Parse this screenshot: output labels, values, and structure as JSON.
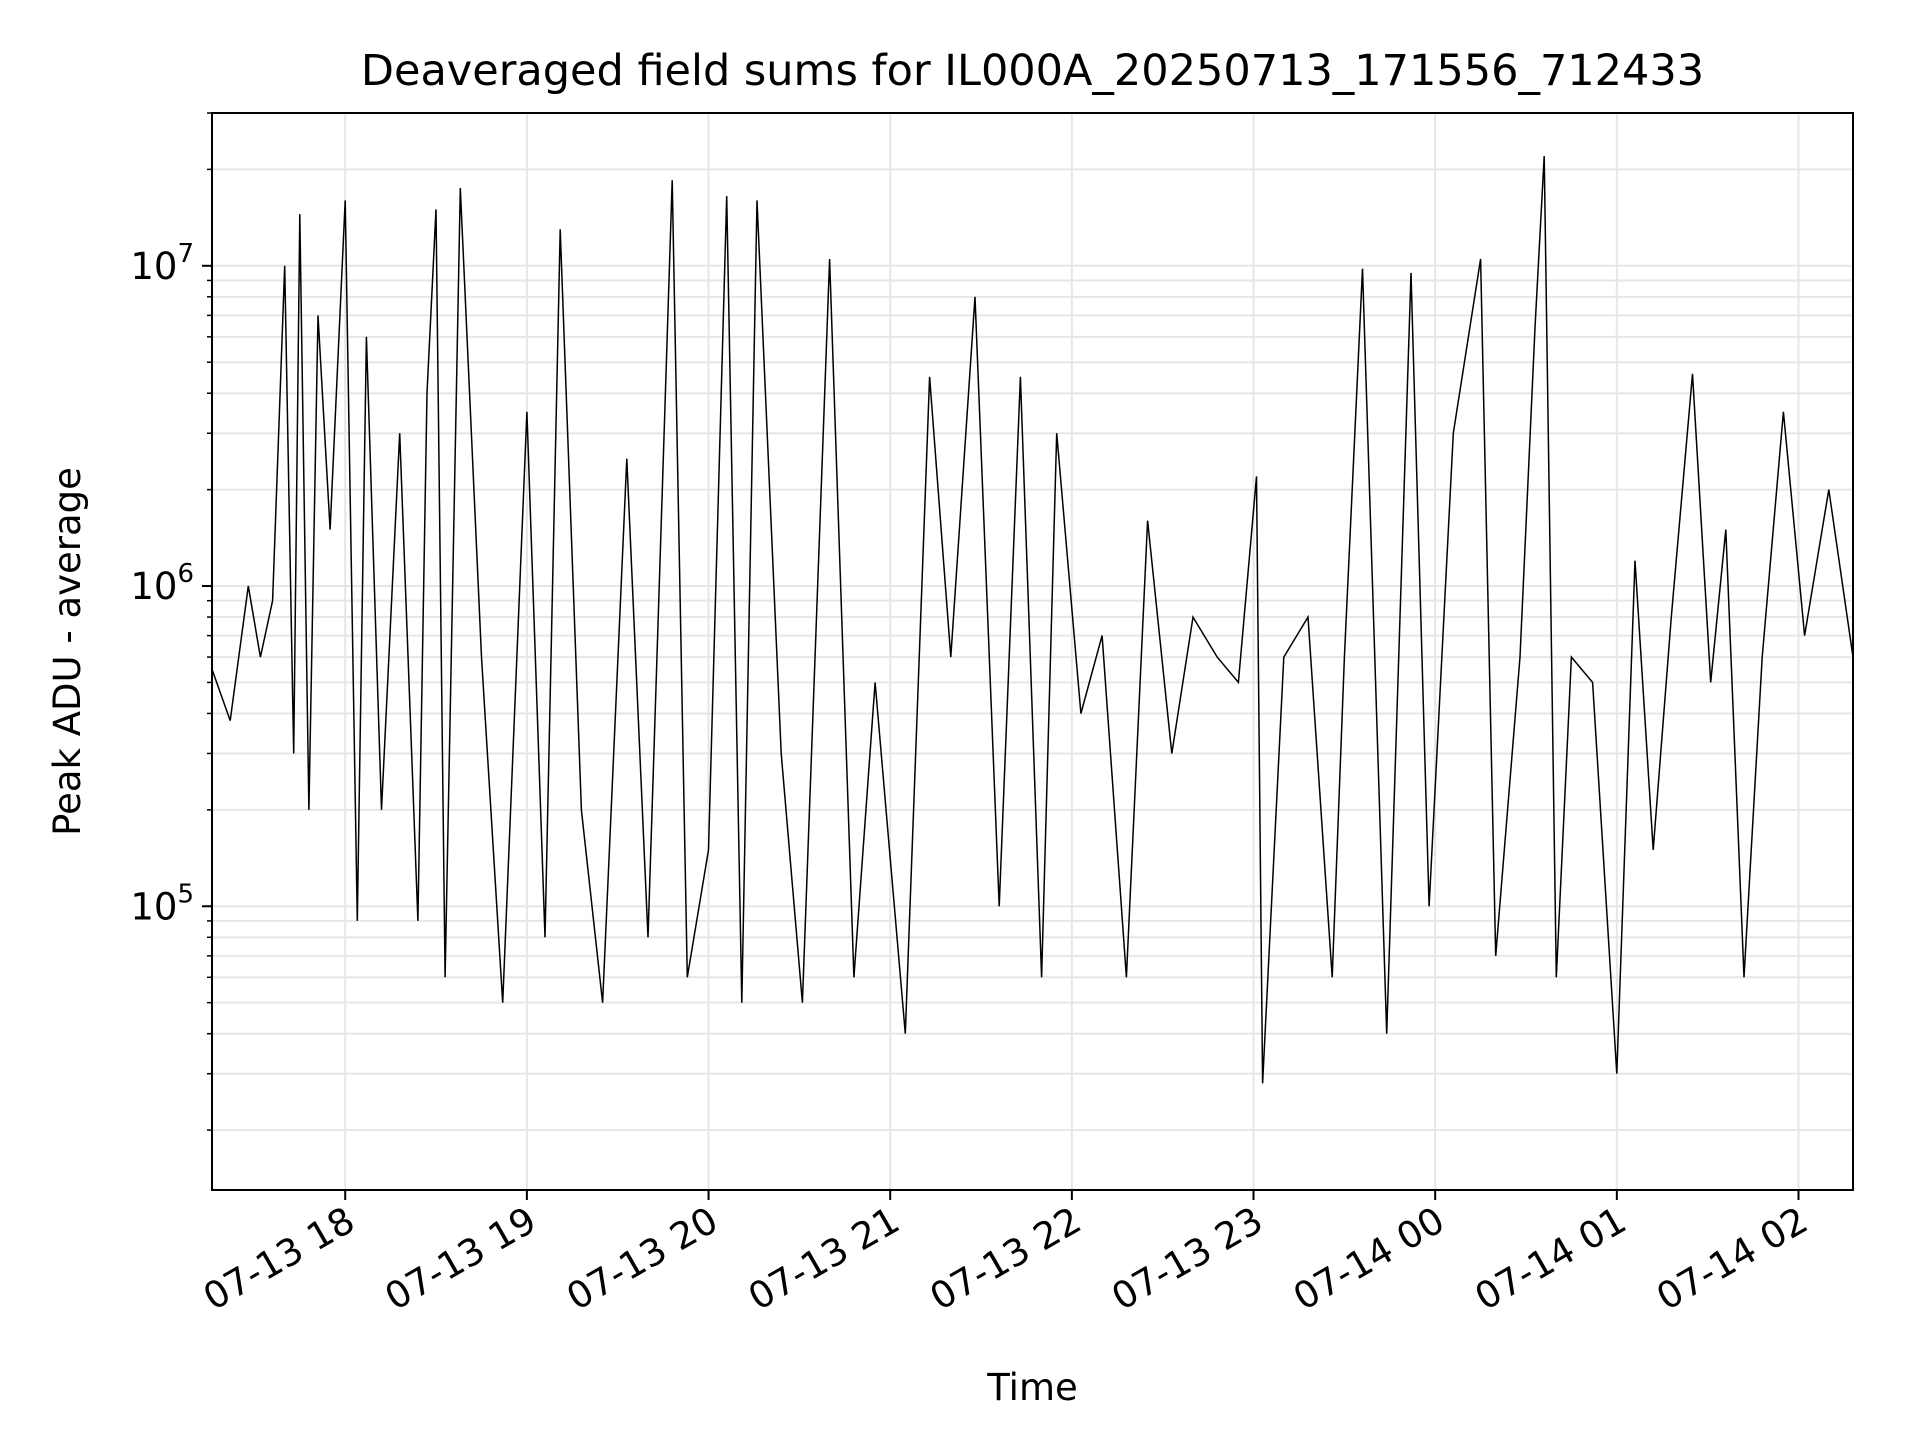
{
  "chart_data": {
    "type": "line",
    "title": "Deaveraged field sums for IL000A_20250713_171556_712433",
    "xlabel": "Time",
    "ylabel": "Peak ADU - average",
    "yscale": "log",
    "grid": true,
    "x_range": [
      "2025-07-13 17:16",
      "2025-07-14 02:18"
    ],
    "ylim": [
      13000,
      30000000
    ],
    "y_ticks": [
      {
        "value": 100000,
        "base": "10",
        "exp": "5"
      },
      {
        "value": 1000000,
        "base": "10",
        "exp": "6"
      },
      {
        "value": 10000000,
        "base": "10",
        "exp": "7"
      }
    ],
    "x_ticks": [
      {
        "value": "2025-07-13 18:00",
        "label": "07-13 18"
      },
      {
        "value": "2025-07-13 19:00",
        "label": "07-13 19"
      },
      {
        "value": "2025-07-13 20:00",
        "label": "07-13 20"
      },
      {
        "value": "2025-07-13 21:00",
        "label": "07-13 21"
      },
      {
        "value": "2025-07-13 22:00",
        "label": "07-13 22"
      },
      {
        "value": "2025-07-13 23:00",
        "label": "07-13 23"
      },
      {
        "value": "2025-07-14 00:00",
        "label": "07-14 00"
      },
      {
        "value": "2025-07-14 01:00",
        "label": "07-14 01"
      },
      {
        "value": "2025-07-14 02:00",
        "label": "07-14 02"
      }
    ],
    "line_color": "#000000",
    "series": [
      {
        "x": [
          "2025-07-13 17:16",
          "2025-07-13 17:22",
          "2025-07-13 17:28",
          "2025-07-13 17:32",
          "2025-07-13 17:36",
          "2025-07-13 17:40",
          "2025-07-13 17:43",
          "2025-07-13 17:45",
          "2025-07-13 17:48",
          "2025-07-13 17:51",
          "2025-07-13 17:55",
          "2025-07-13 18:00",
          "2025-07-13 18:04",
          "2025-07-13 18:07",
          "2025-07-13 18:12",
          "2025-07-13 18:18",
          "2025-07-13 18:24",
          "2025-07-13 18:27",
          "2025-07-13 18:30",
          "2025-07-13 18:33",
          "2025-07-13 18:38",
          "2025-07-13 18:45",
          "2025-07-13 18:52",
          "2025-07-13 19:00",
          "2025-07-13 19:06",
          "2025-07-13 19:11",
          "2025-07-13 19:18",
          "2025-07-13 19:25",
          "2025-07-13 19:33",
          "2025-07-13 19:40",
          "2025-07-13 19:48",
          "2025-07-13 19:53",
          "2025-07-13 20:00",
          "2025-07-13 20:06",
          "2025-07-13 20:11",
          "2025-07-13 20:16",
          "2025-07-13 20:24",
          "2025-07-13 20:31",
          "2025-07-13 20:40",
          "2025-07-13 20:48",
          "2025-07-13 20:55",
          "2025-07-13 21:05",
          "2025-07-13 21:13",
          "2025-07-13 21:20",
          "2025-07-13 21:28",
          "2025-07-13 21:36",
          "2025-07-13 21:43",
          "2025-07-13 21:50",
          "2025-07-13 21:55",
          "2025-07-13 22:03",
          "2025-07-13 22:10",
          "2025-07-13 22:18",
          "2025-07-13 22:25",
          "2025-07-13 22:33",
          "2025-07-13 22:40",
          "2025-07-13 22:48",
          "2025-07-13 22:55",
          "2025-07-13 23:01",
          "2025-07-13 23:03",
          "2025-07-13 23:10",
          "2025-07-13 23:18",
          "2025-07-13 23:26",
          "2025-07-13 23:30",
          "2025-07-13 23:36",
          "2025-07-13 23:44",
          "2025-07-13 23:52",
          "2025-07-13 23:58",
          "2025-07-14 00:06",
          "2025-07-14 00:15",
          "2025-07-14 00:20",
          "2025-07-14 00:28",
          "2025-07-14 00:33",
          "2025-07-14 00:36",
          "2025-07-14 00:40",
          "2025-07-14 00:45",
          "2025-07-14 00:52",
          "2025-07-14 01:00",
          "2025-07-14 01:06",
          "2025-07-14 01:12",
          "2025-07-14 01:18",
          "2025-07-14 01:25",
          "2025-07-14 01:31",
          "2025-07-14 01:36",
          "2025-07-14 01:42",
          "2025-07-14 01:48",
          "2025-07-14 01:55",
          "2025-07-14 02:02",
          "2025-07-14 02:10",
          "2025-07-14 02:18"
        ],
        "y": [
          550000,
          380000,
          1000000,
          600000,
          900000,
          10000000,
          300000,
          14500000,
          200000,
          7000000,
          1500000,
          16000000,
          90000,
          6000000,
          200000,
          3000000,
          90000,
          4000000,
          15000000,
          60000,
          17500000,
          600000,
          50000,
          3500000,
          80000,
          13000000,
          200000,
          50000,
          2500000,
          80000,
          18500000,
          60000,
          150000,
          16500000,
          50000,
          16000000,
          300000,
          50000,
          10500000,
          60000,
          500000,
          40000,
          4500000,
          600000,
          8000000,
          100000,
          4500000,
          60000,
          3000000,
          400000,
          700000,
          60000,
          1600000,
          300000,
          800000,
          600000,
          500000,
          2200000,
          28000,
          600000,
          800000,
          60000,
          600000,
          9800000,
          40000,
          9500000,
          100000,
          3000000,
          10500000,
          70000,
          600000,
          6500000,
          22000000,
          60000,
          600000,
          500000,
          30000,
          1200000,
          150000,
          800000,
          4600000,
          500000,
          1500000,
          60000,
          600000,
          3500000,
          700000,
          2000000,
          600000
        ]
      }
    ]
  }
}
